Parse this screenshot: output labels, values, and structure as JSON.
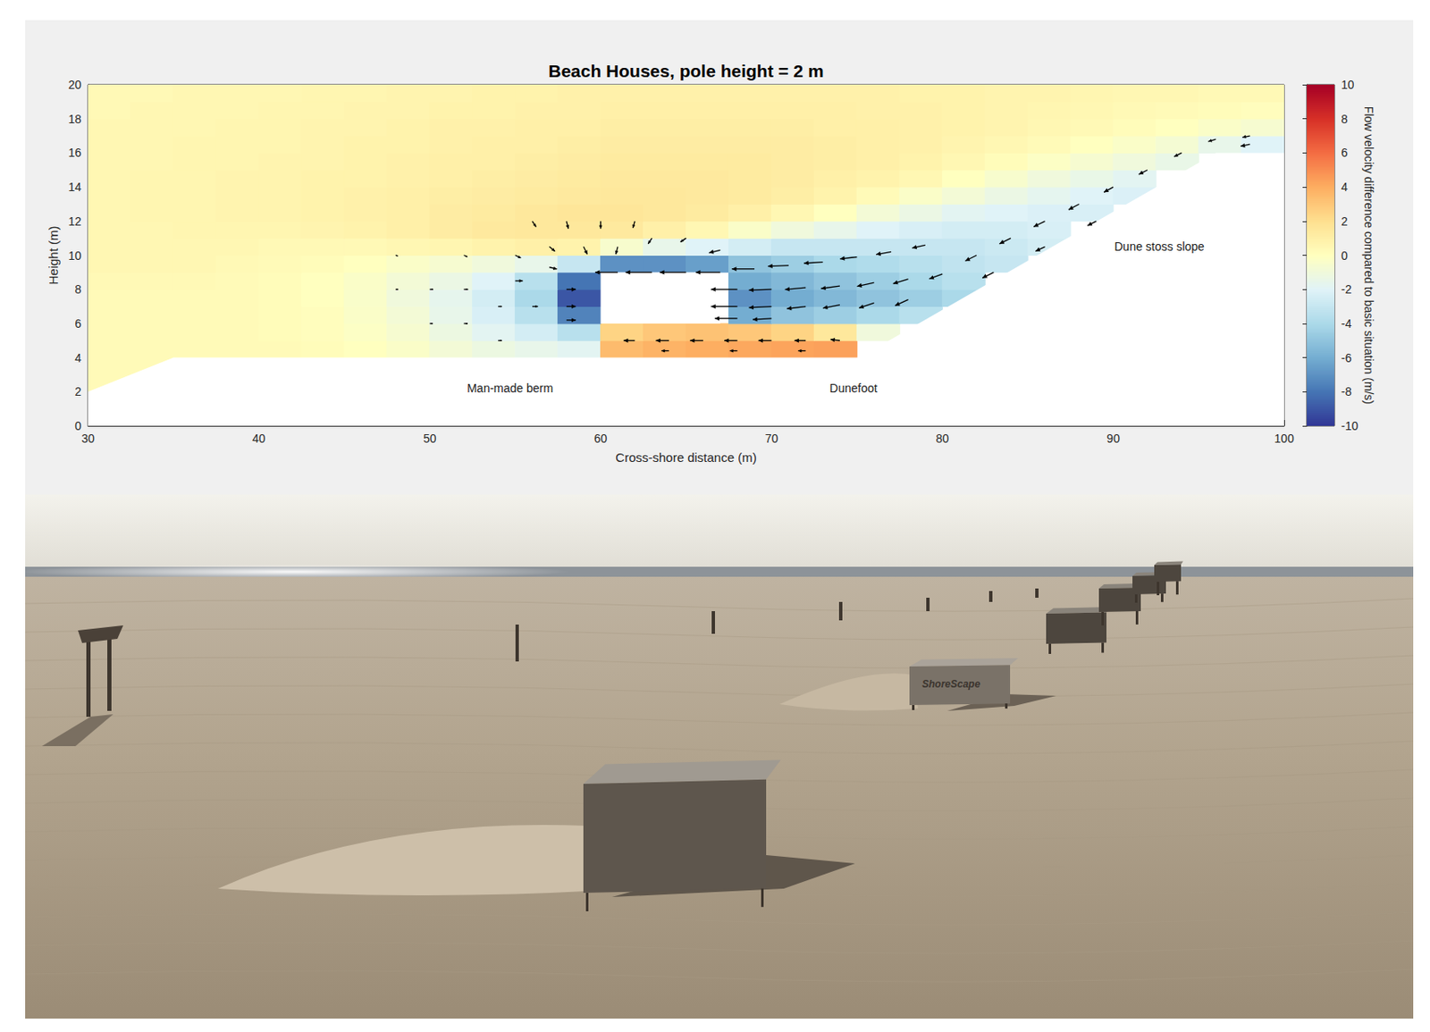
{
  "chart_data": {
    "type": "heatmap",
    "title": "Beach Houses, pole height = 2 m",
    "x_label": "Cross-shore distance (m)",
    "y_label": "Height (m)",
    "xlim": [
      30,
      100
    ],
    "ylim": [
      0,
      20
    ],
    "xticks": [
      30,
      40,
      50,
      60,
      70,
      80,
      90,
      100
    ],
    "yticks": [
      0,
      2,
      4,
      6,
      8,
      10,
      12,
      14,
      16,
      18,
      20
    ],
    "grid": false,
    "colorbar": {
      "label": "Flow velocity difference compared to basic situation (m/s)",
      "range": [
        -10,
        10
      ],
      "ticks": [
        -10,
        -8,
        -6,
        -4,
        -2,
        0,
        2,
        4,
        6,
        8,
        10
      ]
    },
    "x": [
      31.25,
      33.75,
      36.25,
      38.75,
      41.25,
      43.75,
      46.25,
      48.75,
      51.25,
      53.75,
      56.25,
      58.75,
      61.25,
      63.75,
      66.25,
      68.75,
      71.25,
      73.75,
      76.25,
      78.75,
      81.25,
      83.75,
      86.25,
      88.75,
      91.25,
      93.75,
      96.25,
      98.75
    ],
    "y": [
      0.5,
      1.5,
      2.5,
      3.5,
      4.5,
      5.5,
      6.5,
      7.5,
      8.5,
      9.5,
      10.5,
      11.5,
      12.5,
      13.5,
      14.5,
      15.5,
      16.5,
      17.5,
      18.5,
      19.5
    ],
    "values": [
      [
        null,
        null,
        null,
        null,
        null,
        null,
        null,
        null,
        null,
        null,
        null,
        null,
        null,
        null,
        null,
        null,
        null,
        null,
        null,
        null,
        null,
        null,
        null,
        null,
        null,
        null,
        null,
        null
      ],
      [
        null,
        null,
        null,
        null,
        null,
        null,
        null,
        null,
        null,
        null,
        null,
        null,
        null,
        null,
        null,
        null,
        null,
        null,
        null,
        null,
        null,
        null,
        null,
        null,
        null,
        null,
        null,
        null
      ],
      [
        0.3,
        null,
        null,
        null,
        null,
        null,
        null,
        null,
        null,
        null,
        null,
        null,
        null,
        null,
        null,
        null,
        null,
        null,
        null,
        null,
        null,
        null,
        null,
        null,
        null,
        null,
        null,
        null
      ],
      [
        0.3,
        0.3,
        null,
        null,
        null,
        null,
        null,
        null,
        null,
        null,
        null,
        null,
        null,
        null,
        null,
        null,
        null,
        null,
        null,
        null,
        null,
        null,
        null,
        null,
        null,
        null,
        null,
        null
      ],
      [
        0.3,
        0.3,
        0.3,
        0.3,
        0.3,
        0.2,
        0,
        -0.3,
        -0.8,
        -1.2,
        -1.5,
        -1.8,
        3.5,
        3.8,
        4.0,
        4.2,
        4.3,
        4.4,
        null,
        null,
        null,
        null,
        null,
        null,
        null,
        null,
        null,
        null
      ],
      [
        0.3,
        0.3,
        0.3,
        0.3,
        0.2,
        0.1,
        -0.2,
        -0.6,
        -1.2,
        -1.8,
        -2.5,
        -3.5,
        2.5,
        3,
        3.2,
        3,
        2.5,
        1.5,
        -1,
        null,
        null,
        null,
        null,
        null,
        null,
        null,
        null,
        null
      ],
      [
        0.3,
        0.3,
        0.3,
        0.3,
        0.2,
        0.1,
        -0.3,
        -0.8,
        -1.5,
        -2.3,
        -3.5,
        -7.5,
        null,
        null,
        null,
        -6,
        -5,
        -4.5,
        -4,
        -3.5,
        null,
        null,
        null,
        null,
        null,
        null,
        null,
        null
      ],
      [
        0.3,
        0.3,
        0.3,
        0.3,
        0.2,
        0,
        -0.4,
        -1,
        -1.6,
        -2.5,
        -4,
        -9,
        null,
        null,
        null,
        -7,
        -6,
        -5.5,
        -5,
        -4.5,
        -4,
        null,
        null,
        null,
        null,
        null,
        null,
        null
      ],
      [
        0.4,
        0.4,
        0.4,
        0.3,
        0.2,
        0,
        -0.3,
        -0.8,
        -1.3,
        -2,
        -3.5,
        -8,
        null,
        null,
        null,
        -6,
        -5.5,
        -5,
        -4.5,
        -4,
        -3.5,
        null,
        null,
        null,
        null,
        null,
        null,
        null
      ],
      [
        0.5,
        0.5,
        0.5,
        0.4,
        0.3,
        0.2,
        0,
        -0.3,
        -0.6,
        -1,
        -1.5,
        -3,
        -7,
        -7,
        -6.5,
        -5,
        -4.5,
        -4,
        -3.8,
        -3.5,
        -3.2,
        -3,
        null,
        null,
        null,
        null,
        null,
        null
      ],
      [
        0.5,
        0.5,
        0.5,
        0.5,
        0.4,
        0.4,
        0.4,
        0.5,
        0.6,
        0.8,
        1,
        0.8,
        -0.5,
        -1.5,
        -2,
        -2.5,
        -3,
        -3,
        -3,
        -3,
        -3,
        -2.8,
        -2.5,
        null,
        null,
        null,
        null,
        null
      ],
      [
        0.5,
        0.5,
        0.6,
        0.6,
        0.6,
        0.7,
        0.8,
        1,
        1.2,
        1.4,
        1.5,
        1.5,
        1.4,
        1,
        0.5,
        -0.3,
        -1,
        -1.5,
        -2,
        -2.3,
        -2.5,
        -2.5,
        -2.3,
        null,
        null,
        null,
        null,
        null
      ],
      [
        0.5,
        0.6,
        0.6,
        0.7,
        0.7,
        0.8,
        0.9,
        1,
        1.2,
        1.3,
        1.5,
        1.6,
        1.6,
        1.5,
        1.3,
        1,
        0.5,
        0,
        -0.8,
        -1.3,
        -1.8,
        -2,
        -2.2,
        -2.3,
        null,
        null,
        null,
        null
      ],
      [
        0.5,
        0.6,
        0.6,
        0.7,
        0.7,
        0.8,
        0.9,
        1,
        1.1,
        1.2,
        1.3,
        1.4,
        1.5,
        1.5,
        1.4,
        1.3,
        1.1,
        0.8,
        0.3,
        -0.3,
        -0.8,
        -1.3,
        -1.7,
        -2,
        -2.2,
        null,
        null,
        null
      ],
      [
        0.5,
        0.6,
        0.6,
        0.7,
        0.7,
        0.8,
        0.8,
        0.9,
        1,
        1.1,
        1.2,
        1.3,
        1.4,
        1.4,
        1.4,
        1.3,
        1.2,
        1,
        0.8,
        0.5,
        0,
        -0.5,
        -1,
        -1.4,
        -1.8,
        null,
        null,
        null
      ],
      [
        0.5,
        0.5,
        0.6,
        0.6,
        0.7,
        0.7,
        0.8,
        0.9,
        1,
        1,
        1.1,
        1.2,
        1.3,
        1.3,
        1.3,
        1.3,
        1.2,
        1.1,
        1,
        0.8,
        0.5,
        0.2,
        -0.2,
        -0.6,
        -1,
        -1.4,
        null,
        null
      ],
      [
        0.5,
        0.5,
        0.6,
        0.6,
        0.6,
        0.7,
        0.8,
        0.8,
        0.9,
        1,
        1,
        1.1,
        1.2,
        1.2,
        1.2,
        1.2,
        1.2,
        1.1,
        1,
        0.9,
        0.7,
        0.5,
        0.3,
        0,
        -0.3,
        -0.7,
        -1.5,
        -2
      ],
      [
        0.5,
        0.5,
        0.5,
        0.6,
        0.6,
        0.7,
        0.7,
        0.8,
        0.9,
        0.9,
        1,
        1,
        1.1,
        1.1,
        1.1,
        1.1,
        1.1,
        1,
        1,
        0.9,
        0.8,
        0.7,
        0.5,
        0.4,
        0.2,
        0,
        -0.3,
        -0.6
      ],
      [
        0.4,
        0.5,
        0.5,
        0.5,
        0.6,
        0.6,
        0.7,
        0.7,
        0.8,
        0.8,
        0.9,
        0.9,
        1,
        1,
        1,
        1,
        1,
        1,
        0.9,
        0.9,
        0.8,
        0.7,
        0.6,
        0.5,
        0.4,
        0.3,
        0.2,
        0.1
      ],
      [
        0.4,
        0.4,
        0.5,
        0.5,
        0.5,
        0.6,
        0.6,
        0.7,
        0.7,
        0.8,
        0.8,
        0.9,
        0.9,
        0.9,
        0.9,
        0.9,
        0.9,
        0.9,
        0.9,
        0.8,
        0.8,
        0.7,
        0.7,
        0.6,
        0.5,
        0.5,
        0.4,
        0.4
      ]
    ],
    "vectors": [
      {
        "x": 61,
        "y": 9,
        "u": -6,
        "w": 0
      },
      {
        "x": 63,
        "y": 9,
        "u": -7,
        "w": 0
      },
      {
        "x": 65,
        "y": 9,
        "u": -7,
        "w": 0
      },
      {
        "x": 67,
        "y": 9,
        "u": -6.5,
        "w": 0
      },
      {
        "x": 69,
        "y": 9.2,
        "u": -6,
        "w": 0
      },
      {
        "x": 71,
        "y": 9.4,
        "u": -5.5,
        "w": -0.2
      },
      {
        "x": 73,
        "y": 9.6,
        "u": -5,
        "w": -0.3
      },
      {
        "x": 75,
        "y": 9.9,
        "u": -4.5,
        "w": -0.5
      },
      {
        "x": 77,
        "y": 10.2,
        "u": -4,
        "w": -0.7
      },
      {
        "x": 79,
        "y": 10.6,
        "u": -3.5,
        "w": -0.8
      },
      {
        "x": 68,
        "y": 8,
        "u": -7,
        "w": 0
      },
      {
        "x": 70,
        "y": 8,
        "u": -6,
        "w": -0.2
      },
      {
        "x": 72,
        "y": 8.1,
        "u": -5.5,
        "w": -0.5
      },
      {
        "x": 74,
        "y": 8.2,
        "u": -5,
        "w": -0.7
      },
      {
        "x": 76,
        "y": 8.4,
        "u": -4.5,
        "w": -1
      },
      {
        "x": 78,
        "y": 8.6,
        "u": -4,
        "w": -1.2
      },
      {
        "x": 80,
        "y": 8.9,
        "u": -3.5,
        "w": -1.3
      },
      {
        "x": 68,
        "y": 7,
        "u": -7,
        "w": 0
      },
      {
        "x": 70,
        "y": 7,
        "u": -6,
        "w": -0.3
      },
      {
        "x": 72,
        "y": 7,
        "u": -5,
        "w": -0.6
      },
      {
        "x": 74,
        "y": 7.1,
        "u": -4.5,
        "w": -0.9
      },
      {
        "x": 76,
        "y": 7.2,
        "u": -4,
        "w": -1.3
      },
      {
        "x": 78,
        "y": 7.4,
        "u": -3.5,
        "w": -1.6
      },
      {
        "x": 68,
        "y": 6.3,
        "u": -6,
        "w": 0
      },
      {
        "x": 70,
        "y": 6.3,
        "u": -5,
        "w": -0.3
      },
      {
        "x": 62,
        "y": 5,
        "u": -3,
        "w": 0
      },
      {
        "x": 64,
        "y": 5,
        "u": -3.5,
        "w": 0
      },
      {
        "x": 66,
        "y": 5,
        "u": -3.5,
        "w": 0
      },
      {
        "x": 68,
        "y": 5,
        "u": -3.5,
        "w": 0
      },
      {
        "x": 70,
        "y": 5,
        "u": -3.5,
        "w": 0
      },
      {
        "x": 72,
        "y": 5,
        "u": -3,
        "w": 0
      },
      {
        "x": 74,
        "y": 5,
        "u": -2.5,
        "w": 0.3
      },
      {
        "x": 64,
        "y": 4.4,
        "u": -2,
        "w": 0
      },
      {
        "x": 68,
        "y": 4.4,
        "u": -2,
        "w": 0
      },
      {
        "x": 72,
        "y": 4.4,
        "u": -2,
        "w": 0
      },
      {
        "x": 82,
        "y": 10,
        "u": -3,
        "w": -1.5
      },
      {
        "x": 84,
        "y": 11,
        "u": -3,
        "w": -1.5
      },
      {
        "x": 86,
        "y": 12,
        "u": -3,
        "w": -1.5
      },
      {
        "x": 88,
        "y": 13,
        "u": -2.8,
        "w": -1.5
      },
      {
        "x": 90,
        "y": 14,
        "u": -2.5,
        "w": -1.4
      },
      {
        "x": 92,
        "y": 15,
        "u": -2.3,
        "w": -1.2
      },
      {
        "x": 94,
        "y": 16,
        "u": -2,
        "w": -1
      },
      {
        "x": 96,
        "y": 16.8,
        "u": -2,
        "w": -0.6
      },
      {
        "x": 98,
        "y": 17,
        "u": -2,
        "w": -0.4
      },
      {
        "x": 98,
        "y": 16.5,
        "u": -2.5,
        "w": -0.5
      },
      {
        "x": 83,
        "y": 9,
        "u": -3,
        "w": -1.5
      },
      {
        "x": 86,
        "y": 10.5,
        "u": -2.5,
        "w": -1.2
      },
      {
        "x": 89,
        "y": 12,
        "u": -2.3,
        "w": -1.2
      },
      {
        "x": 56,
        "y": 12,
        "u": 1,
        "w": -1.5
      },
      {
        "x": 58,
        "y": 12,
        "u": 0.5,
        "w": -2
      },
      {
        "x": 60,
        "y": 12,
        "u": 0,
        "w": -2
      },
      {
        "x": 62,
        "y": 12,
        "u": -0.5,
        "w": -1.8
      },
      {
        "x": 57,
        "y": 10.5,
        "u": 1.5,
        "w": -1.2
      },
      {
        "x": 59,
        "y": 10.5,
        "u": 1,
        "w": -2
      },
      {
        "x": 61,
        "y": 10.5,
        "u": -0.5,
        "w": -2
      },
      {
        "x": 55,
        "y": 10,
        "u": 1.5,
        "w": -0.7
      },
      {
        "x": 55,
        "y": 8.5,
        "u": 2,
        "w": 0
      },
      {
        "x": 57,
        "y": 9.3,
        "u": 2,
        "w": -0.5
      },
      {
        "x": 58,
        "y": 8,
        "u": 2.5,
        "w": 0
      },
      {
        "x": 58,
        "y": 7,
        "u": 2.5,
        "w": 0
      },
      {
        "x": 58,
        "y": 6.2,
        "u": 2.5,
        "w": 0
      },
      {
        "x": 56,
        "y": 7,
        "u": 1.5,
        "w": 0
      },
      {
        "x": 54,
        "y": 7,
        "u": 1,
        "w": 0
      },
      {
        "x": 63,
        "y": 11,
        "u": -1,
        "w": -1.5
      },
      {
        "x": 65,
        "y": 11,
        "u": -1.5,
        "w": -1
      },
      {
        "x": 67,
        "y": 10.3,
        "u": -3,
        "w": -0.7
      },
      {
        "x": 48,
        "y": 8,
        "u": 0.7,
        "w": 0
      },
      {
        "x": 50,
        "y": 8,
        "u": 0.9,
        "w": 0
      },
      {
        "x": 52,
        "y": 8,
        "u": 1.1,
        "w": 0
      },
      {
        "x": 50,
        "y": 6,
        "u": 0.8,
        "w": 0
      },
      {
        "x": 52,
        "y": 6,
        "u": 1,
        "w": 0
      },
      {
        "x": 54,
        "y": 5,
        "u": 1,
        "w": 0
      },
      {
        "x": 48,
        "y": 10,
        "u": 0.6,
        "w": -0.2
      },
      {
        "x": 52,
        "y": 10,
        "u": 0.9,
        "w": -0.4
      }
    ],
    "ground": {
      "x": [
        30,
        35,
        75,
        76,
        96,
        100
      ],
      "y": [
        2,
        4,
        4,
        4.5,
        16,
        16
      ]
    },
    "house": {
      "x": [
        60,
        67
      ],
      "y": [
        6,
        9
      ]
    },
    "annotations": [
      {
        "text": "Man-made berm",
        "x": 54.7,
        "y": 2.2
      },
      {
        "text": "Dunefoot",
        "x": 74.8,
        "y": 2.2
      },
      {
        "text": "Dune stoss slope",
        "x": 92.7,
        "y": 10.5
      }
    ]
  },
  "photo": {
    "label": "ShoreScape"
  }
}
